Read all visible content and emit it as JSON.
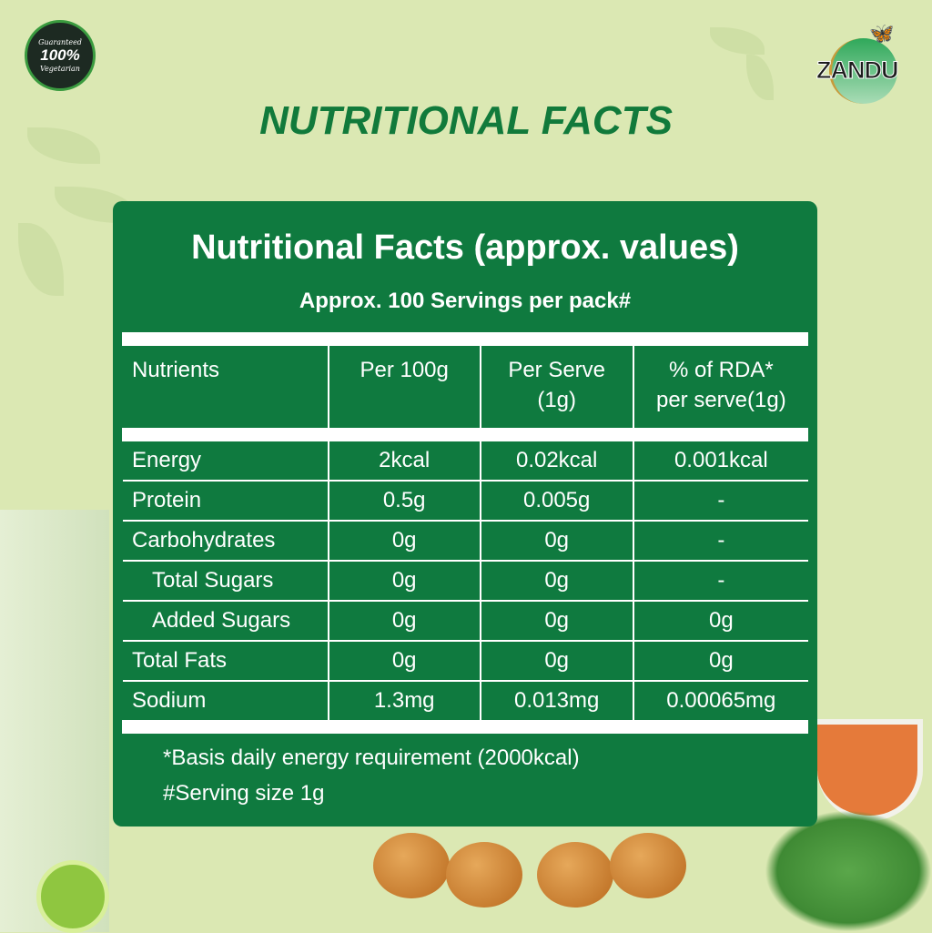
{
  "badge": {
    "top": "Guaranteed",
    "center": "100%",
    "bottom": "Vegetarian"
  },
  "brand": {
    "logo_text": "ZANDU"
  },
  "page_title": "NUTRITIONAL FACTS",
  "card": {
    "title": "Nutritional Facts (approx. values)",
    "subtitle": "Approx. 100 Servings per pack#",
    "columns": [
      "Nutrients",
      "Per 100g",
      "Per Serve\n(1g)",
      "% of RDA*\nper serve(1g)"
    ],
    "columns_lines": [
      [
        "Nutrients"
      ],
      [
        "Per 100g"
      ],
      [
        "Per Serve",
        "(1g)"
      ],
      [
        "% of RDA*",
        "per serve(1g)"
      ]
    ],
    "rows": [
      [
        "Energy",
        "2kcal",
        "0.02kcal",
        "0.001kcal"
      ],
      [
        "Protein",
        "0.5g",
        "0.005g",
        "-"
      ],
      [
        "Carbohydrates",
        "0g",
        "0g",
        "-"
      ],
      [
        "Total Sugars",
        "0g",
        "0g",
        "-"
      ],
      [
        "Added Sugars",
        "0g",
        "0g",
        "0g"
      ],
      [
        "Total Fats",
        "0g",
        "0g",
        "0g"
      ],
      [
        "Sodium",
        "1.3mg",
        "0.013mg",
        "0.00065mg"
      ]
    ],
    "notes": [
      "*Basis daily energy requirement (2000kcal)",
      "#Serving size 1g"
    ]
  },
  "colors": {
    "background": "#dbe8b3",
    "card": "#0f7a3f",
    "title": "#117a3b"
  }
}
